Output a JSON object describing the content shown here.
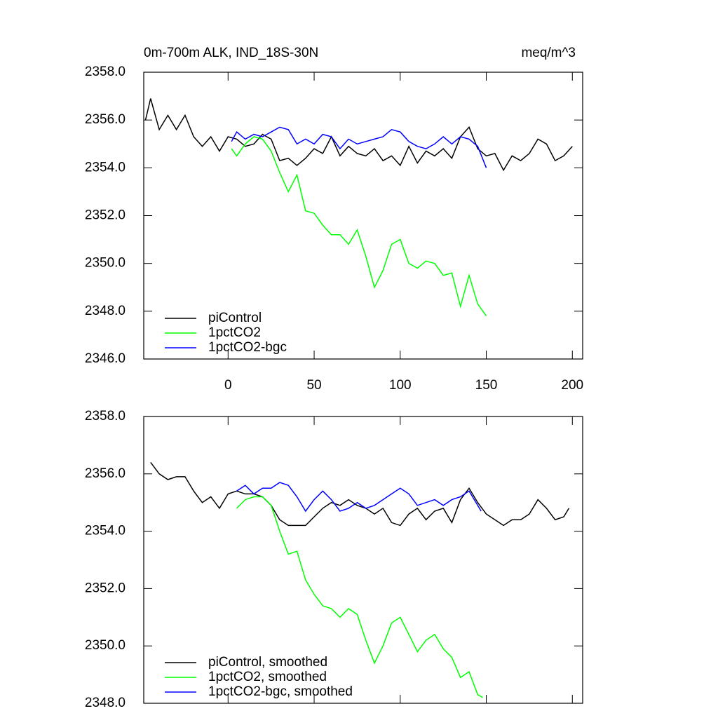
{
  "chart_data": [
    {
      "type": "line",
      "title": "0m-700m ALK, IND_18S-30N",
      "units": "meq/m^3",
      "xlim": [
        -49,
        206
      ],
      "ylim": [
        2346,
        2358
      ],
      "xticks": [
        0,
        50,
        100,
        150,
        200
      ],
      "xtick_labels": true,
      "yticks": [
        {
          "value": 2346,
          "label": "2346.0"
        },
        {
          "value": 2348,
          "label": "2348.0"
        },
        {
          "value": 2350,
          "label": "2350.0"
        },
        {
          "value": 2352,
          "label": "2352.0"
        },
        {
          "value": 2354,
          "label": "2354.0"
        },
        {
          "value": 2356,
          "label": "2356.0"
        },
        {
          "value": 2358,
          "label": "2358.0"
        }
      ],
      "legend": "lower left",
      "series": [
        {
          "name": "piControl",
          "color": "#000000",
          "x": [
            -48,
            -45,
            -40,
            -35,
            -30,
            -25,
            -20,
            -15,
            -10,
            -5,
            0,
            5,
            10,
            15,
            20,
            25,
            30,
            35,
            40,
            45,
            50,
            55,
            60,
            65,
            70,
            75,
            80,
            85,
            90,
            95,
            100,
            105,
            110,
            115,
            120,
            125,
            130,
            135,
            140,
            145,
            150,
            155,
            160,
            165,
            170,
            175,
            180,
            185,
            190,
            195,
            200
          ],
          "values": [
            2356.0,
            2356.9,
            2355.6,
            2356.2,
            2355.6,
            2356.2,
            2355.3,
            2354.9,
            2355.3,
            2354.7,
            2355.3,
            2355.2,
            2354.9,
            2355.0,
            2355.4,
            2355.2,
            2354.3,
            2354.4,
            2354.1,
            2354.4,
            2354.8,
            2354.6,
            2355.3,
            2354.5,
            2354.9,
            2354.6,
            2354.5,
            2354.8,
            2354.3,
            2354.5,
            2354.1,
            2354.9,
            2354.2,
            2354.7,
            2354.5,
            2354.8,
            2354.4,
            2355.3,
            2355.7,
            2354.8,
            2354.5,
            2354.6,
            2353.9,
            2354.5,
            2354.3,
            2354.6,
            2355.2,
            2355.0,
            2354.3,
            2354.5,
            2354.9
          ]
        },
        {
          "name": "1pctCO2",
          "color": "#00ff00",
          "x": [
            2,
            5,
            10,
            15,
            20,
            25,
            30,
            35,
            40,
            45,
            50,
            55,
            60,
            65,
            70,
            75,
            80,
            85,
            90,
            95,
            100,
            105,
            110,
            115,
            120,
            125,
            130,
            135,
            140,
            145,
            150
          ],
          "values": [
            2354.8,
            2354.5,
            2355.0,
            2355.3,
            2355.2,
            2354.7,
            2353.8,
            2353.0,
            2353.7,
            2352.2,
            2352.1,
            2351.6,
            2351.2,
            2351.2,
            2350.8,
            2351.4,
            2350.3,
            2349.0,
            2349.7,
            2350.8,
            2351.0,
            2350.0,
            2349.8,
            2350.1,
            2350.0,
            2349.5,
            2349.6,
            2348.2,
            2349.5,
            2348.3,
            2347.8
          ]
        },
        {
          "name": "1pctCO2-bgc",
          "color": "#0000ff",
          "x": [
            2,
            5,
            10,
            15,
            20,
            25,
            30,
            35,
            40,
            45,
            50,
            55,
            60,
            65,
            70,
            75,
            80,
            85,
            90,
            95,
            100,
            105,
            110,
            115,
            120,
            125,
            130,
            135,
            140,
            145,
            150
          ],
          "values": [
            2355.1,
            2355.5,
            2355.2,
            2355.4,
            2355.3,
            2355.5,
            2355.7,
            2355.6,
            2355.0,
            2355.2,
            2355.0,
            2355.4,
            2355.3,
            2354.8,
            2355.2,
            2355.0,
            2355.1,
            2355.2,
            2355.3,
            2355.6,
            2355.5,
            2355.1,
            2354.9,
            2354.8,
            2355.0,
            2355.3,
            2355.0,
            2355.3,
            2355.2,
            2354.9,
            2354.0
          ]
        }
      ]
    },
    {
      "type": "line",
      "xlim": [
        -49,
        206
      ],
      "ylim": [
        2348,
        2358
      ],
      "xticks": [
        0,
        50,
        100,
        150,
        200
      ],
      "xtick_labels": false,
      "yticks": [
        {
          "value": 2348,
          "label": "2348.0"
        },
        {
          "value": 2350,
          "label": "2350.0"
        },
        {
          "value": 2352,
          "label": "2352.0"
        },
        {
          "value": 2354,
          "label": "2354.0"
        },
        {
          "value": 2356,
          "label": "2356.0"
        },
        {
          "value": 2358,
          "label": "2358.0"
        }
      ],
      "legend": "lower left",
      "series": [
        {
          "name": "piControl, smoothed",
          "color": "#000000",
          "x": [
            -45,
            -40,
            -35,
            -30,
            -25,
            -20,
            -15,
            -10,
            -5,
            0,
            5,
            10,
            15,
            20,
            25,
            30,
            35,
            40,
            45,
            50,
            55,
            60,
            65,
            70,
            75,
            80,
            85,
            90,
            95,
            100,
            105,
            110,
            115,
            120,
            125,
            130,
            135,
            140,
            145,
            150,
            155,
            160,
            165,
            170,
            175,
            180,
            185,
            190,
            195,
            198
          ],
          "values": [
            2356.4,
            2356.0,
            2355.8,
            2355.9,
            2355.9,
            2355.4,
            2355.0,
            2355.2,
            2354.8,
            2355.3,
            2355.4,
            2355.3,
            2355.3,
            2355.2,
            2354.9,
            2354.4,
            2354.2,
            2354.2,
            2354.2,
            2354.5,
            2354.8,
            2355.0,
            2354.9,
            2355.1,
            2354.9,
            2354.8,
            2354.6,
            2354.8,
            2354.3,
            2354.2,
            2354.6,
            2354.8,
            2354.4,
            2354.7,
            2354.8,
            2354.3,
            2355.1,
            2355.5,
            2355.0,
            2354.6,
            2354.4,
            2354.2,
            2354.4,
            2354.4,
            2354.6,
            2355.1,
            2354.8,
            2354.4,
            2354.5,
            2354.8
          ]
        },
        {
          "name": "1pctCO2, smoothed",
          "color": "#00ff00",
          "x": [
            5,
            10,
            15,
            20,
            25,
            30,
            35,
            40,
            45,
            50,
            55,
            60,
            65,
            70,
            75,
            80,
            85,
            90,
            95,
            100,
            105,
            110,
            115,
            120,
            125,
            130,
            135,
            140,
            145,
            148
          ],
          "values": [
            2354.8,
            2355.1,
            2355.2,
            2355.2,
            2354.9,
            2354.0,
            2353.2,
            2353.3,
            2352.3,
            2351.8,
            2351.4,
            2351.3,
            2351.0,
            2351.3,
            2351.1,
            2350.2,
            2349.4,
            2350.0,
            2350.8,
            2351.0,
            2350.4,
            2349.8,
            2350.2,
            2350.4,
            2349.9,
            2349.6,
            2348.9,
            2349.1,
            2348.3,
            2348.2
          ]
        },
        {
          "name": "1pctCO2-bgc, smoothed",
          "color": "#0000ff",
          "x": [
            5,
            10,
            15,
            20,
            25,
            30,
            35,
            40,
            45,
            50,
            55,
            60,
            65,
            70,
            75,
            80,
            85,
            90,
            95,
            100,
            105,
            110,
            115,
            120,
            125,
            130,
            135,
            140,
            145,
            147
          ],
          "values": [
            2355.4,
            2355.6,
            2355.3,
            2355.5,
            2355.5,
            2355.7,
            2355.6,
            2355.2,
            2354.7,
            2355.1,
            2355.4,
            2355.1,
            2354.7,
            2354.8,
            2355.0,
            2354.8,
            2354.9,
            2355.1,
            2355.3,
            2355.5,
            2355.3,
            2354.9,
            2355.0,
            2355.1,
            2354.9,
            2355.1,
            2355.2,
            2355.4,
            2354.9,
            2354.7
          ]
        }
      ]
    }
  ]
}
